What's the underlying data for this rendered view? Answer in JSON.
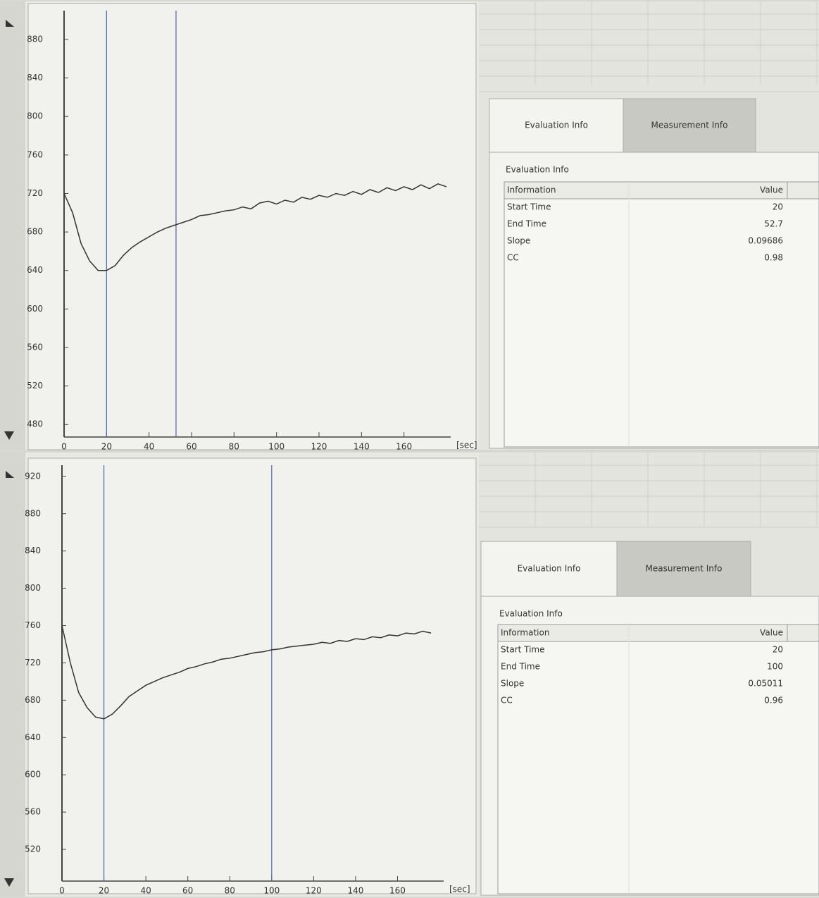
{
  "chart_data": [
    {
      "type": "line",
      "x_label": "[sec]",
      "color": "#333333",
      "marker_color": "#4a64a8",
      "xlim": [
        0,
        182
      ],
      "xticks": [
        0,
        20,
        40,
        60,
        80,
        100,
        120,
        140,
        160
      ],
      "ylim": [
        467,
        910
      ],
      "yticks": [
        480,
        520,
        560,
        600,
        640,
        680,
        720,
        760,
        800,
        840,
        880
      ],
      "x": [
        0,
        4,
        8,
        12,
        16,
        20,
        24,
        28,
        32,
        36,
        40,
        44,
        48,
        52,
        56,
        60,
        64,
        68,
        72,
        76,
        80,
        84,
        88,
        92,
        96,
        100,
        104,
        108,
        112,
        116,
        120,
        124,
        128,
        132,
        136,
        140,
        144,
        148,
        152,
        156,
        160,
        164,
        168,
        172,
        176,
        180
      ],
      "values": [
        720,
        700,
        668,
        650,
        640,
        640,
        645,
        656,
        664,
        670,
        675,
        680,
        684,
        687,
        690,
        693,
        697,
        698,
        700,
        702,
        703,
        706,
        704,
        710,
        712,
        709,
        713,
        711,
        716,
        714,
        718,
        716,
        720,
        718,
        722,
        719,
        724,
        721,
        726,
        723,
        727,
        724,
        729,
        725,
        730,
        727
      ]
    },
    {
      "type": "line",
      "x_label": "[sec]",
      "color": "#333333",
      "marker_color": "#4a64a8",
      "xlim": [
        0,
        182
      ],
      "xticks": [
        0,
        20,
        40,
        60,
        80,
        100,
        120,
        140,
        160
      ],
      "ylim": [
        486,
        932
      ],
      "yticks": [
        520,
        560,
        600,
        640,
        680,
        720,
        760,
        800,
        840,
        880,
        920
      ],
      "x": [
        0,
        4,
        8,
        12,
        16,
        20,
        24,
        28,
        32,
        36,
        40,
        44,
        48,
        52,
        56,
        60,
        64,
        68,
        72,
        76,
        80,
        84,
        88,
        92,
        96,
        100,
        104,
        108,
        112,
        116,
        120,
        124,
        128,
        132,
        136,
        140,
        144,
        148,
        152,
        156,
        160,
        164,
        168,
        172,
        176
      ],
      "values": [
        760,
        720,
        688,
        672,
        662,
        660,
        665,
        674,
        684,
        690,
        696,
        700,
        704,
        707,
        710,
        714,
        716,
        719,
        721,
        724,
        725,
        727,
        729,
        731,
        732,
        734,
        735,
        737,
        738,
        739,
        740,
        742,
        741,
        744,
        743,
        746,
        745,
        748,
        747,
        750,
        749,
        752,
        751,
        754,
        752
      ]
    }
  ],
  "panels": [
    {
      "tabs": [
        "Evaluation Info",
        "Measurement Info"
      ],
      "section_title": "Evaluation Info",
      "table": {
        "header": [
          "Information",
          "Value"
        ],
        "rows": [
          [
            "Start Time",
            20
          ],
          [
            "End Time",
            52.7
          ],
          [
            "Slope",
            0.09686
          ],
          [
            "CC",
            0.98
          ]
        ]
      }
    },
    {
      "tabs": [
        "Evaluation Info",
        "Measurement Info"
      ],
      "section_title": "Evaluation Info",
      "table": {
        "header": [
          "Information",
          "Value"
        ],
        "rows": [
          [
            "Start Time",
            20
          ],
          [
            "End Time",
            100
          ],
          [
            "Slope",
            0.05011
          ],
          [
            "CC",
            0.96
          ]
        ]
      }
    }
  ]
}
